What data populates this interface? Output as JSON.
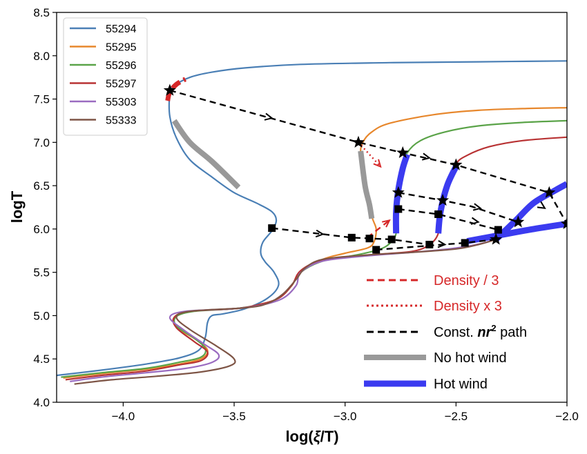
{
  "chart_data": {
    "type": "line",
    "xlabel_main": "log(",
    "xlabel_sym": "ξ",
    "xlabel_tail": "/T)",
    "ylabel": "logT",
    "xlim": [
      -4.3,
      -2.0
    ],
    "ylim": [
      4.0,
      8.5
    ],
    "xticks": [
      -4.0,
      -3.5,
      -3.0,
      -2.5,
      -2.0
    ],
    "xtick_labels": [
      "−4.0",
      "−3.5",
      "−3.0",
      "−2.5",
      "−2.0"
    ],
    "yticks": [
      4.0,
      4.5,
      5.0,
      5.5,
      6.0,
      6.5,
      7.0,
      7.5,
      8.0,
      8.5
    ],
    "ytick_labels": [
      "4.0",
      "4.5",
      "5.0",
      "5.5",
      "6.0",
      "6.5",
      "7.0",
      "7.5",
      "8.0",
      "8.5"
    ],
    "legend_position": "top-left",
    "series": [
      {
        "name": "55294",
        "color": "#4a7fb5",
        "points": [
          [
            -4.3,
            4.31
          ],
          [
            -4.1,
            4.37
          ],
          [
            -3.9,
            4.44
          ],
          [
            -3.75,
            4.51
          ],
          [
            -3.66,
            4.6
          ],
          [
            -3.63,
            4.75
          ],
          [
            -3.62,
            4.92
          ],
          [
            -3.6,
            5.0
          ],
          [
            -3.55,
            5.02
          ],
          [
            -3.45,
            5.08
          ],
          [
            -3.35,
            5.2
          ],
          [
            -3.3,
            5.35
          ],
          [
            -3.32,
            5.5
          ],
          [
            -3.36,
            5.62
          ],
          [
            -3.38,
            5.72
          ],
          [
            -3.37,
            5.85
          ],
          [
            -3.33,
            5.98
          ],
          [
            -3.31,
            6.1
          ],
          [
            -3.33,
            6.2
          ],
          [
            -3.4,
            6.3
          ],
          [
            -3.5,
            6.42
          ],
          [
            -3.6,
            6.6
          ],
          [
            -3.7,
            6.8
          ],
          [
            -3.76,
            7.05
          ],
          [
            -3.79,
            7.3
          ],
          [
            -3.79,
            7.55
          ],
          [
            -3.77,
            7.65
          ],
          [
            -3.7,
            7.75
          ],
          [
            -3.6,
            7.81
          ],
          [
            -3.45,
            7.86
          ],
          [
            -3.2,
            7.9
          ],
          [
            -2.8,
            7.92
          ],
          [
            -2.4,
            7.93
          ],
          [
            -2.0,
            7.94
          ]
        ]
      },
      {
        "name": "55295",
        "color": "#e7872c",
        "points": [
          [
            -4.27,
            4.28
          ],
          [
            -4.1,
            4.33
          ],
          [
            -3.9,
            4.38
          ],
          [
            -3.75,
            4.44
          ],
          [
            -3.65,
            4.5
          ],
          [
            -3.62,
            4.6
          ],
          [
            -3.67,
            4.72
          ],
          [
            -3.75,
            4.85
          ],
          [
            -3.77,
            4.98
          ],
          [
            -3.7,
            5.05
          ],
          [
            -3.5,
            5.08
          ],
          [
            -3.4,
            5.12
          ],
          [
            -3.3,
            5.2
          ],
          [
            -3.24,
            5.35
          ],
          [
            -3.2,
            5.5
          ],
          [
            -3.1,
            5.65
          ],
          [
            -3.0,
            5.72
          ],
          [
            -2.9,
            5.78
          ],
          [
            -2.87,
            5.85
          ],
          [
            -2.86,
            6.0
          ],
          [
            -2.88,
            6.15
          ],
          [
            -2.91,
            6.5
          ],
          [
            -2.93,
            6.85
          ],
          [
            -2.92,
            7.0
          ],
          [
            -2.88,
            7.12
          ],
          [
            -2.8,
            7.22
          ],
          [
            -2.6,
            7.32
          ],
          [
            -2.4,
            7.37
          ],
          [
            -2.2,
            7.39
          ],
          [
            -2.0,
            7.4
          ]
        ]
      },
      {
        "name": "55296",
        "color": "#5aa348",
        "points": [
          [
            -4.28,
            4.29
          ],
          [
            -4.1,
            4.34
          ],
          [
            -3.9,
            4.39
          ],
          [
            -3.75,
            4.46
          ],
          [
            -3.65,
            4.52
          ],
          [
            -3.63,
            4.62
          ],
          [
            -3.68,
            4.74
          ],
          [
            -3.76,
            4.88
          ],
          [
            -3.76,
            4.99
          ],
          [
            -3.68,
            5.05
          ],
          [
            -3.5,
            5.08
          ],
          [
            -3.4,
            5.12
          ],
          [
            -3.3,
            5.2
          ],
          [
            -3.24,
            5.35
          ],
          [
            -3.2,
            5.5
          ],
          [
            -3.1,
            5.63
          ],
          [
            -2.95,
            5.7
          ],
          [
            -2.85,
            5.76
          ],
          [
            -2.8,
            5.83
          ],
          [
            -2.77,
            5.95
          ],
          [
            -2.77,
            6.2
          ],
          [
            -2.76,
            6.45
          ],
          [
            -2.74,
            6.7
          ],
          [
            -2.72,
            6.88
          ],
          [
            -2.66,
            7.02
          ],
          [
            -2.55,
            7.12
          ],
          [
            -2.4,
            7.19
          ],
          [
            -2.2,
            7.23
          ],
          [
            -2.0,
            7.25
          ]
        ]
      },
      {
        "name": "55297",
        "color": "#b83233",
        "points": [
          [
            -4.26,
            4.26
          ],
          [
            -4.1,
            4.31
          ],
          [
            -3.9,
            4.36
          ],
          [
            -3.75,
            4.43
          ],
          [
            -3.65,
            4.48
          ],
          [
            -3.62,
            4.58
          ],
          [
            -3.68,
            4.7
          ],
          [
            -3.76,
            4.86
          ],
          [
            -3.77,
            4.98
          ],
          [
            -3.7,
            5.05
          ],
          [
            -3.5,
            5.08
          ],
          [
            -3.4,
            5.12
          ],
          [
            -3.3,
            5.2
          ],
          [
            -3.24,
            5.35
          ],
          [
            -3.2,
            5.52
          ],
          [
            -3.1,
            5.64
          ],
          [
            -2.9,
            5.7
          ],
          [
            -2.7,
            5.74
          ],
          [
            -2.62,
            5.82
          ],
          [
            -2.58,
            5.95
          ],
          [
            -2.57,
            6.2
          ],
          [
            -2.54,
            6.5
          ],
          [
            -2.5,
            6.75
          ],
          [
            -2.45,
            6.85
          ],
          [
            -2.35,
            6.95
          ],
          [
            -2.2,
            7.02
          ],
          [
            -2.0,
            7.06
          ]
        ]
      },
      {
        "name": "55303",
        "color": "#9a6bc0",
        "points": [
          [
            -4.24,
            4.24
          ],
          [
            -4.1,
            4.29
          ],
          [
            -3.9,
            4.34
          ],
          [
            -3.72,
            4.39
          ],
          [
            -3.6,
            4.46
          ],
          [
            -3.57,
            4.55
          ],
          [
            -3.64,
            4.68
          ],
          [
            -3.73,
            4.84
          ],
          [
            -3.79,
            4.98
          ],
          [
            -3.72,
            5.05
          ],
          [
            -3.5,
            5.08
          ],
          [
            -3.38,
            5.12
          ],
          [
            -3.28,
            5.2
          ],
          [
            -3.22,
            5.35
          ],
          [
            -3.2,
            5.5
          ],
          [
            -3.1,
            5.63
          ],
          [
            -2.9,
            5.69
          ],
          [
            -2.7,
            5.73
          ],
          [
            -2.5,
            5.78
          ],
          [
            -2.36,
            5.85
          ],
          [
            -2.3,
            5.93
          ],
          [
            -2.23,
            6.1
          ],
          [
            -2.15,
            6.3
          ],
          [
            -2.05,
            6.45
          ],
          [
            -2.0,
            6.52
          ]
        ]
      },
      {
        "name": "55333",
        "color": "#7e5546",
        "points": [
          [
            -4.22,
            4.21
          ],
          [
            -4.05,
            4.26
          ],
          [
            -3.85,
            4.3
          ],
          [
            -3.65,
            4.35
          ],
          [
            -3.52,
            4.42
          ],
          [
            -3.5,
            4.5
          ],
          [
            -3.58,
            4.65
          ],
          [
            -3.7,
            4.84
          ],
          [
            -3.76,
            4.98
          ],
          [
            -3.7,
            5.05
          ],
          [
            -3.45,
            5.09
          ],
          [
            -3.35,
            5.14
          ],
          [
            -3.28,
            5.25
          ],
          [
            -3.22,
            5.42
          ],
          [
            -3.18,
            5.55
          ],
          [
            -3.1,
            5.65
          ],
          [
            -2.9,
            5.7
          ],
          [
            -2.7,
            5.73
          ],
          [
            -2.5,
            5.77
          ],
          [
            -2.4,
            5.82
          ],
          [
            -2.32,
            5.88
          ],
          [
            -2.25,
            5.95
          ],
          [
            -2.15,
            6.02
          ],
          [
            -2.0,
            6.07
          ]
        ]
      }
    ],
    "overlays": {
      "no_hot_wind": [
        [
          [
            -3.77,
            7.25
          ],
          [
            -3.7,
            7.0
          ],
          [
            -3.6,
            6.78
          ],
          [
            -3.48,
            6.48
          ]
        ],
        [
          [
            -2.93,
            6.9
          ],
          [
            -2.91,
            6.5
          ],
          [
            -2.89,
            6.28
          ],
          [
            -2.88,
            6.12
          ]
        ]
      ],
      "hot_wind": [
        [
          [
            -2.77,
            5.95
          ],
          [
            -2.77,
            6.2
          ],
          [
            -2.76,
            6.45
          ],
          [
            -2.74,
            6.7
          ],
          [
            -2.72,
            6.86
          ]
        ],
        [
          [
            -2.58,
            5.95
          ],
          [
            -2.57,
            6.2
          ],
          [
            -2.54,
            6.5
          ],
          [
            -2.5,
            6.72
          ]
        ],
        [
          [
            -2.32,
            5.88
          ],
          [
            -2.23,
            6.1
          ],
          [
            -2.15,
            6.3
          ],
          [
            -2.05,
            6.45
          ],
          [
            -2.0,
            6.52
          ]
        ],
        [
          [
            -2.45,
            5.86
          ],
          [
            -2.3,
            5.93
          ],
          [
            -2.15,
            6.0
          ],
          [
            -2.0,
            6.06
          ]
        ]
      ],
      "red_segment": [
        [
          -3.8,
          7.48
        ],
        [
          -3.79,
          7.58
        ],
        [
          -3.76,
          7.67
        ],
        [
          -3.72,
          7.73
        ]
      ]
    },
    "star_markers": [
      [
        -3.79,
        7.6
      ],
      [
        -2.94,
        7.0
      ],
      [
        -2.74,
        6.88
      ],
      [
        -2.5,
        6.74
      ],
      [
        -2.08,
        6.42
      ],
      [
        -2.0,
        6.06
      ],
      [
        -2.22,
        6.08
      ],
      [
        -2.32,
        5.88
      ],
      [
        -2.56,
        6.33
      ],
      [
        -2.76,
        6.42
      ]
    ],
    "square_markers": [
      [
        -3.33,
        6.01
      ],
      [
        -2.97,
        5.9
      ],
      [
        -2.89,
        5.89
      ],
      [
        -2.79,
        5.88
      ],
      [
        -2.62,
        5.82
      ],
      [
        -2.86,
        5.76
      ],
      [
        -2.46,
        5.84
      ],
      [
        -2.31,
        5.99
      ],
      [
        -2.58,
        6.17
      ],
      [
        -2.76,
        6.23
      ]
    ],
    "const_paths": [
      [
        [
          -3.79,
          7.6
        ],
        [
          -2.94,
          7.0
        ],
        [
          -2.74,
          6.88
        ],
        [
          -2.5,
          6.74
        ],
        [
          -2.08,
          6.42
        ],
        [
          -2.0,
          6.06
        ]
      ],
      [
        [
          -2.76,
          6.42
        ],
        [
          -2.56,
          6.33
        ],
        [
          -2.43,
          6.26
        ],
        [
          -2.22,
          6.08
        ]
      ],
      [
        [
          -2.76,
          6.23
        ],
        [
          -2.58,
          6.17
        ],
        [
          -2.31,
          5.99
        ]
      ],
      [
        [
          -3.33,
          6.01
        ],
        [
          -2.97,
          5.9
        ],
        [
          -2.79,
          5.88
        ],
        [
          -2.62,
          5.82
        ]
      ],
      [
        [
          -2.86,
          5.76
        ],
        [
          -2.46,
          5.84
        ],
        [
          -2.32,
          5.88
        ]
      ]
    ],
    "arrows": [
      [
        [
          -3.42,
          7.33
        ],
        [
          -3.33,
          7.28
        ]
      ],
      [
        [
          -2.7,
          6.86
        ],
        [
          -2.62,
          6.82
        ]
      ],
      [
        [
          -2.45,
          6.27
        ],
        [
          -2.39,
          6.24
        ]
      ],
      [
        [
          -3.18,
          5.96
        ],
        [
          -3.1,
          5.94
        ]
      ],
      [
        [
          -2.47,
          6.11
        ],
        [
          -2.4,
          6.08
        ]
      ],
      [
        [
          -2.13,
          6.29
        ],
        [
          -2.1,
          6.24
        ]
      ],
      [
        [
          -2.6,
          5.83
        ],
        [
          -2.55,
          5.82
        ]
      ]
    ],
    "density_div3_path": [
      [
        -2.9,
        5.9
      ],
      [
        -2.8,
        6.1
      ]
    ],
    "density_x3_path": [
      [
        -2.94,
        7.0
      ],
      [
        -2.84,
        6.72
      ]
    ],
    "legend": [
      "55294",
      "55295",
      "55296",
      "55297",
      "55303",
      "55333"
    ],
    "legend2": {
      "density_div3": "Density / 3",
      "density_x3": "Density x 3",
      "const_path_pre": "Const. ",
      "const_path_n": "nr",
      "const_path_exp": "2",
      "const_path_post": " path",
      "no_hot_wind": "No hot wind",
      "hot_wind": "Hot wind"
    },
    "colors": {
      "red": "#d62728",
      "black": "#000000",
      "gray": "#999999",
      "blue": "#3b3bf0"
    }
  }
}
